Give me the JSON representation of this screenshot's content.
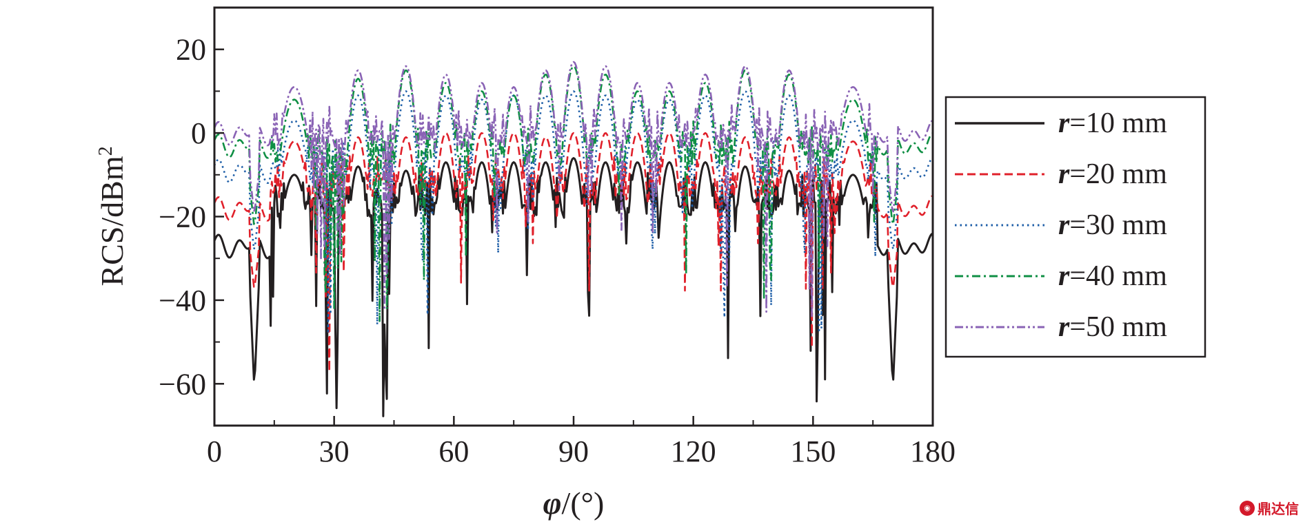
{
  "watermark": {
    "text": "鼎达信",
    "icon": "circle-logo-icon"
  },
  "chart_data": {
    "type": "line",
    "xlabel_symbol": "φ",
    "xlabel_unit": "/(°)",
    "ylabel_main": "RCS/dBm",
    "ylabel_sup": "2",
    "xlim": [
      0,
      180
    ],
    "ylim": [
      -70,
      30
    ],
    "xticks": [
      0,
      30,
      60,
      90,
      120,
      150,
      180
    ],
    "xtick_labels": [
      "0",
      "30",
      "60",
      "90",
      "120",
      "150",
      "180"
    ],
    "yticks": [
      20,
      0,
      -20,
      -40,
      -60
    ],
    "ytick_labels": [
      "20",
      "0",
      "−20",
      "−40",
      "−60"
    ],
    "grid": false,
    "legend_position": "right-outside",
    "lobe_centers": [
      20,
      36,
      48,
      58,
      67,
      75,
      83,
      90,
      98,
      106,
      114,
      123,
      133,
      144,
      160
    ],
    "series": [
      {
        "name": "r=10 mm",
        "symbol": "r",
        "label_rest": "=10 mm",
        "color": "#231f20",
        "dash": "solid",
        "lobe_peaks": [
          -10,
          -8,
          -9,
          -7,
          -7,
          -7,
          -7,
          -6,
          -7,
          -7,
          -7,
          -7,
          -8,
          -9,
          -10
        ],
        "floor": -32,
        "edge_level": -27,
        "null_min": -62
      },
      {
        "name": "r=20 mm",
        "symbol": "r",
        "label_rest": "=20 mm",
        "color": "#e0202a",
        "dash": "dashed",
        "lobe_peaks": [
          -2,
          -1,
          -1,
          0,
          0,
          0,
          -1,
          0,
          0,
          0,
          0,
          0,
          -1,
          -1,
          -2
        ],
        "floor": -28,
        "edge_level": -18,
        "null_min": -52
      },
      {
        "name": "r=30 mm",
        "symbol": "r",
        "label_rest": "=30 mm",
        "color": "#1f5fa8",
        "dash": "dotted",
        "lobe_peaks": [
          3,
          9,
          10,
          9,
          8,
          9,
          9,
          10,
          9,
          8,
          8,
          9,
          10,
          9,
          3
        ],
        "floor": -24,
        "edge_level": -9,
        "null_min": -46
      },
      {
        "name": "r=40 mm",
        "symbol": "r",
        "label_rest": "=40 mm",
        "color": "#0f8f44",
        "dash": "dashdot",
        "lobe_peaks": [
          8,
          13,
          15,
          12,
          10,
          9,
          14,
          16,
          14,
          10,
          10,
          12,
          15,
          14,
          8
        ],
        "floor": -20,
        "edge_level": -3,
        "null_min": -42
      },
      {
        "name": "r=50 mm",
        "symbol": "r",
        "label_rest": "=50 mm",
        "color": "#8a63b5",
        "dash": "dashdotdot",
        "lobe_peaks": [
          11,
          15,
          16,
          14,
          12,
          11,
          15,
          17,
          16,
          12,
          12,
          14,
          16,
          15,
          11
        ],
        "floor": -16,
        "edge_level": 0,
        "null_min": -38
      }
    ]
  }
}
